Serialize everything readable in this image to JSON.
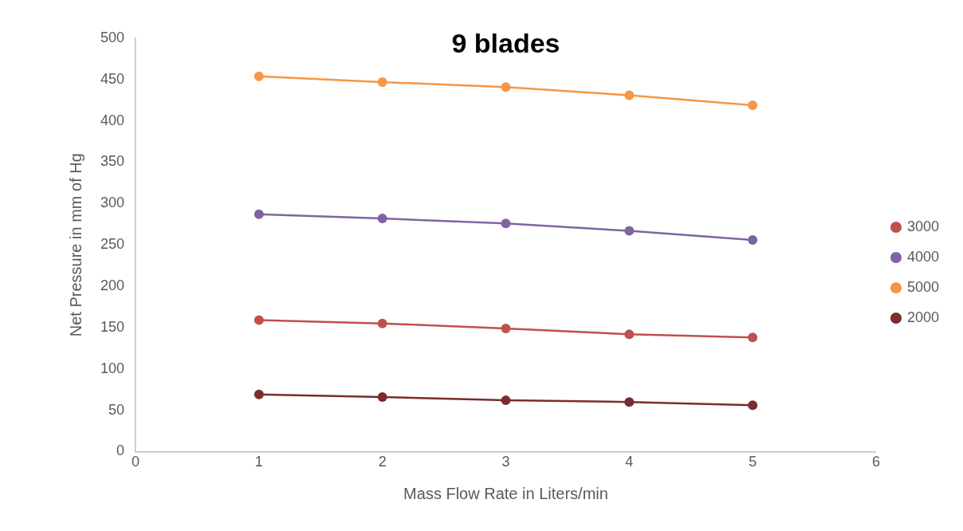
{
  "chart_data": {
    "type": "line",
    "title": "9 blades",
    "xlabel": "Mass Flow Rate in Liters/min",
    "ylabel": "Net Pressure in mm of Hg",
    "x": [
      1,
      2,
      3,
      4,
      5
    ],
    "series": [
      {
        "name": "3000",
        "color": "#c0504d",
        "values": [
          159,
          155,
          149,
          142,
          138
        ]
      },
      {
        "name": "4000",
        "color": "#8064a2",
        "values": [
          287,
          282,
          276,
          267,
          256
        ]
      },
      {
        "name": "5000",
        "color": "#f79646",
        "values": [
          454,
          447,
          441,
          431,
          419
        ]
      },
      {
        "name": "2000",
        "color": "#7b2c2c",
        "values": [
          69,
          66,
          62,
          60,
          56
        ]
      }
    ],
    "xlim": [
      0,
      6
    ],
    "xticks": [
      0,
      1,
      2,
      3,
      4,
      5,
      6
    ],
    "ylim": [
      0,
      500
    ],
    "yticks": [
      0,
      50,
      100,
      150,
      200,
      250,
      300,
      350,
      400,
      450,
      500
    ],
    "grid": false,
    "legend": "right",
    "marker": "circle",
    "line_style": "solid"
  }
}
